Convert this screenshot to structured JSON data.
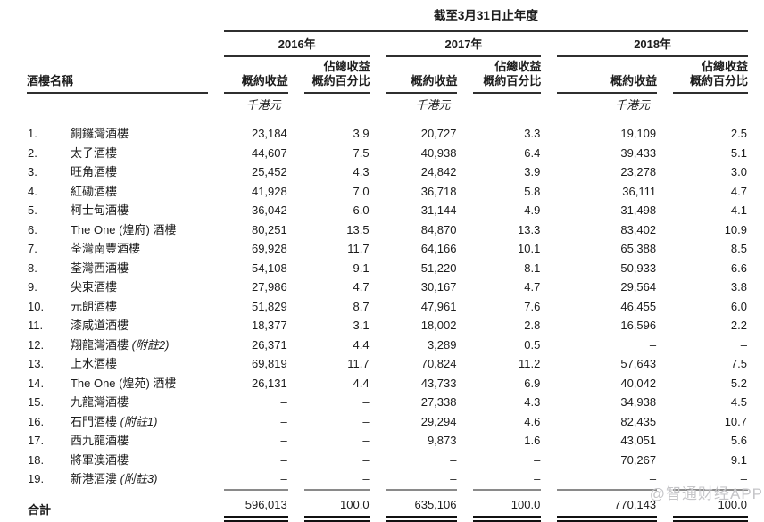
{
  "header": {
    "period_title": "截至3月31日止年度",
    "name_column": "酒樓名稱",
    "years": [
      "2016年",
      "2017年",
      "2018年"
    ],
    "revenue_label": "概約收益",
    "pct_label_line1": "佔總收益",
    "pct_label_line2": "概約百分比",
    "unit": "千港元"
  },
  "table": {
    "rows": [
      {
        "no": "1.",
        "name": "銅鑼灣酒樓",
        "note": "",
        "v2016": "23,184",
        "p2016": "3.9",
        "v2017": "20,727",
        "p2017": "3.3",
        "v2018": "19,109",
        "p2018": "2.5"
      },
      {
        "no": "2.",
        "name": "太子酒樓",
        "note": "",
        "v2016": "44,607",
        "p2016": "7.5",
        "v2017": "40,938",
        "p2017": "6.4",
        "v2018": "39,433",
        "p2018": "5.1"
      },
      {
        "no": "3.",
        "name": "旺角酒樓",
        "note": "",
        "v2016": "25,452",
        "p2016": "4.3",
        "v2017": "24,842",
        "p2017": "3.9",
        "v2018": "23,278",
        "p2018": "3.0"
      },
      {
        "no": "4.",
        "name": "紅磡酒樓",
        "note": "",
        "v2016": "41,928",
        "p2016": "7.0",
        "v2017": "36,718",
        "p2017": "5.8",
        "v2018": "36,111",
        "p2018": "4.7"
      },
      {
        "no": "5.",
        "name": "柯士甸酒樓",
        "note": "",
        "v2016": "36,042",
        "p2016": "6.0",
        "v2017": "31,144",
        "p2017": "4.9",
        "v2018": "31,498",
        "p2018": "4.1"
      },
      {
        "no": "6.",
        "name": "The One (煌府) 酒樓",
        "note": "",
        "v2016": "80,251",
        "p2016": "13.5",
        "v2017": "84,870",
        "p2017": "13.3",
        "v2018": "83,402",
        "p2018": "10.9"
      },
      {
        "no": "7.",
        "name": "荃灣南豐酒樓",
        "note": "",
        "v2016": "69,928",
        "p2016": "11.7",
        "v2017": "64,166",
        "p2017": "10.1",
        "v2018": "65,388",
        "p2018": "8.5"
      },
      {
        "no": "8.",
        "name": "荃灣西酒樓",
        "note": "",
        "v2016": "54,108",
        "p2016": "9.1",
        "v2017": "51,220",
        "p2017": "8.1",
        "v2018": "50,933",
        "p2018": "6.6"
      },
      {
        "no": "9.",
        "name": "尖東酒樓",
        "note": "",
        "v2016": "27,986",
        "p2016": "4.7",
        "v2017": "30,167",
        "p2017": "4.7",
        "v2018": "29,564",
        "p2018": "3.8"
      },
      {
        "no": "10.",
        "name": "元朗酒樓",
        "note": "",
        "v2016": "51,829",
        "p2016": "8.7",
        "v2017": "47,961",
        "p2017": "7.6",
        "v2018": "46,455",
        "p2018": "6.0"
      },
      {
        "no": "11.",
        "name": "漆咸道酒樓",
        "note": "",
        "v2016": "18,377",
        "p2016": "3.1",
        "v2017": "18,002",
        "p2017": "2.8",
        "v2018": "16,596",
        "p2018": "2.2"
      },
      {
        "no": "12.",
        "name": "翔龍灣酒樓",
        "note": "(附註2)",
        "v2016": "26,371",
        "p2016": "4.4",
        "v2017": "3,289",
        "p2017": "0.5",
        "v2018": "–",
        "p2018": "–"
      },
      {
        "no": "13.",
        "name": "上水酒樓",
        "note": "",
        "v2016": "69,819",
        "p2016": "11.7",
        "v2017": "70,824",
        "p2017": "11.2",
        "v2018": "57,643",
        "p2018": "7.5"
      },
      {
        "no": "14.",
        "name": "The One (煌苑) 酒樓",
        "note": "",
        "v2016": "26,131",
        "p2016": "4.4",
        "v2017": "43,733",
        "p2017": "6.9",
        "v2018": "40,042",
        "p2018": "5.2"
      },
      {
        "no": "15.",
        "name": "九龍灣酒樓",
        "note": "",
        "v2016": "–",
        "p2016": "–",
        "v2017": "27,338",
        "p2017": "4.3",
        "v2018": "34,938",
        "p2018": "4.5"
      },
      {
        "no": "16.",
        "name": "石門酒樓",
        "note": "(附註1)",
        "v2016": "–",
        "p2016": "–",
        "v2017": "29,294",
        "p2017": "4.6",
        "v2018": "82,435",
        "p2018": "10.7"
      },
      {
        "no": "17.",
        "name": "西九龍酒樓",
        "note": "",
        "v2016": "–",
        "p2016": "–",
        "v2017": "9,873",
        "p2017": "1.6",
        "v2018": "43,051",
        "p2018": "5.6"
      },
      {
        "no": "18.",
        "name": "將軍澳酒樓",
        "note": "",
        "v2016": "–",
        "p2016": "–",
        "v2017": "–",
        "p2017": "–",
        "v2018": "70,267",
        "p2018": "9.1"
      },
      {
        "no": "19.",
        "name": "新港酒漊",
        "note": "(附註3)",
        "v2016": "–",
        "p2016": "–",
        "v2017": "–",
        "p2017": "–",
        "v2018": "–",
        "p2018": "–"
      }
    ],
    "total": {
      "label": "合計",
      "v2016": "596,013",
      "p2016": "100.0",
      "v2017": "635,106",
      "p2017": "100.0",
      "v2018": "770,143",
      "p2018": "100.0"
    }
  },
  "watermark": "@智通财经APP"
}
